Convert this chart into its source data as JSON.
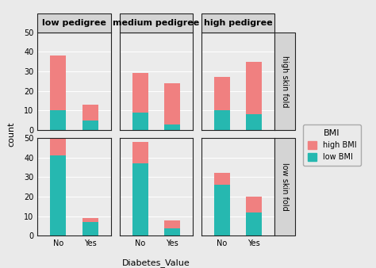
{
  "col_labels": [
    "low pedigree",
    "medium pedigree",
    "high pedigree"
  ],
  "row_labels": [
    "high skin fold",
    "low skin fold"
  ],
  "x_labels": [
    "No",
    "Yes"
  ],
  "xlabel": "Diabetes_Value",
  "ylabel": "count",
  "legend_title": "BMI",
  "legend_labels": [
    "high BMI",
    "low BMI"
  ],
  "color_high": "#F08080",
  "color_low": "#26B8B0",
  "bar_data": {
    "high skin fold": {
      "low pedigree": {
        "No": {
          "high": 28,
          "low": 10
        },
        "Yes": {
          "high": 8,
          "low": 5
        }
      },
      "medium pedigree": {
        "No": {
          "high": 20,
          "low": 9
        },
        "Yes": {
          "high": 21,
          "low": 3
        }
      },
      "high pedigree": {
        "No": {
          "high": 17,
          "low": 10
        },
        "Yes": {
          "high": 27,
          "low": 8
        }
      }
    },
    "low skin fold": {
      "low pedigree": {
        "No": {
          "high": 9,
          "low": 41
        },
        "Yes": {
          "high": 2,
          "low": 7
        }
      },
      "medium pedigree": {
        "No": {
          "high": 11,
          "low": 37
        },
        "Yes": {
          "high": 4,
          "low": 4
        }
      },
      "high pedigree": {
        "No": {
          "high": 6,
          "low": 26
        },
        "Yes": {
          "high": 8,
          "low": 12
        }
      }
    }
  },
  "ylim": [
    0,
    50
  ],
  "yticks": [
    0,
    10,
    20,
    30,
    40,
    50
  ],
  "bg_color": "#EAEAEA",
  "panel_bg": "#EBEBEB",
  "strip_bg": "#D4D4D4",
  "grid_color": "#FFFFFF",
  "bar_width": 0.5,
  "title_fontsize": 8,
  "tick_fontsize": 7,
  "label_fontsize": 8,
  "strip_fontsize": 7
}
